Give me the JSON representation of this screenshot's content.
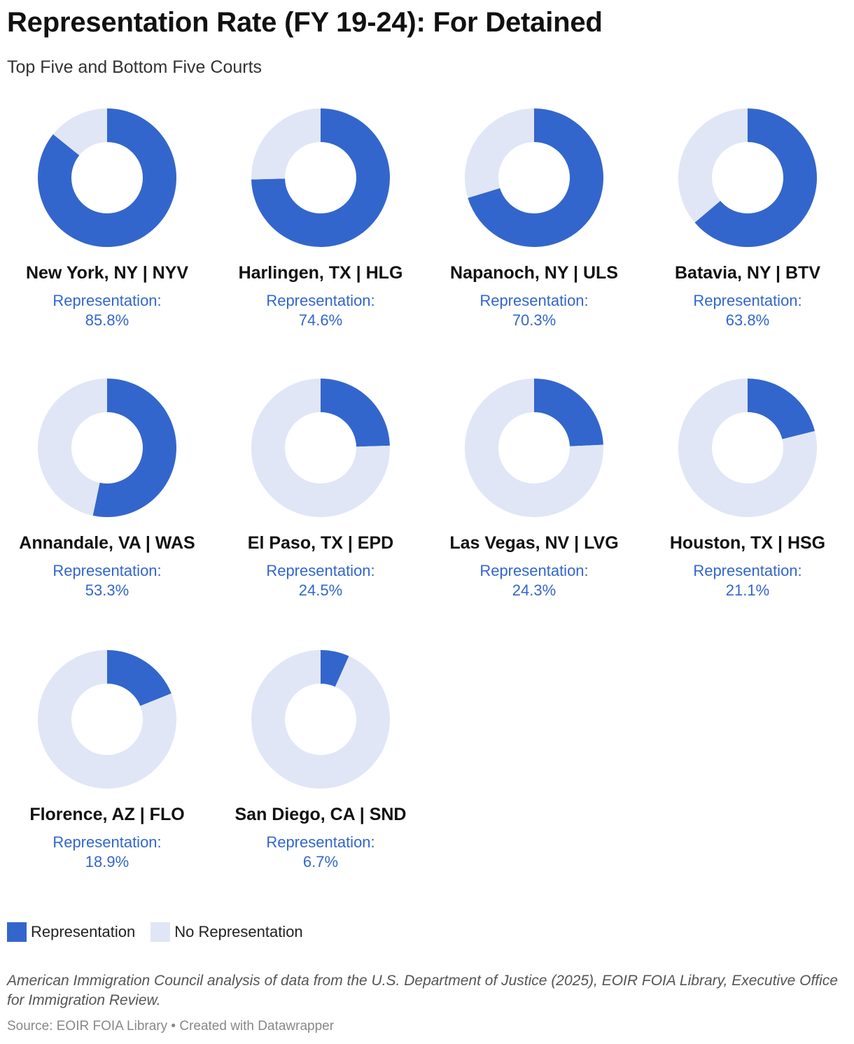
{
  "title": "Representation Rate (FY 19-24): For Detained",
  "subtitle": "Top Five and Bottom Five Courts",
  "colors": {
    "representation": "#3366cc",
    "no_representation": "#e0e6f5"
  },
  "chart_data": {
    "type": "pie",
    "variant": "donut small multiples",
    "value_label": "Representation:",
    "unit": "%",
    "series": [
      {
        "name": "Representation",
        "color": "#3366cc"
      },
      {
        "name": "No Representation",
        "color": "#e0e6f5"
      }
    ],
    "panels": [
      {
        "court": "New York, NY | NYV",
        "representation": 85.8,
        "display": "85.8%"
      },
      {
        "court": "Harlingen, TX | HLG",
        "representation": 74.6,
        "display": "74.6%"
      },
      {
        "court": "Napanoch, NY | ULS",
        "representation": 70.3,
        "display": "70.3%"
      },
      {
        "court": "Batavia, NY | BTV",
        "representation": 63.8,
        "display": "63.8%"
      },
      {
        "court": "Annandale, VA | WAS",
        "representation": 53.3,
        "display": "53.3%"
      },
      {
        "court": "El Paso, TX | EPD",
        "representation": 24.5,
        "display": "24.5%"
      },
      {
        "court": "Las Vegas, NV | LVG",
        "representation": 24.3,
        "display": "24.3%"
      },
      {
        "court": "Houston, TX | HSG",
        "representation": 21.1,
        "display": "21.1%"
      },
      {
        "court": "Florence, AZ | FLO",
        "representation": 18.9,
        "display": "18.9%"
      },
      {
        "court": "San Diego, CA | SND",
        "representation": 6.7,
        "display": "6.7%"
      }
    ]
  },
  "legend": {
    "representation": "Representation",
    "no_representation": "No Representation"
  },
  "footer": {
    "note": "American Immigration Council analysis of data from the U.S. Department of Justice (2025), EOIR FOIA Library, Executive Office for Immigration Review.",
    "source": "Source: EOIR FOIA Library • Created with Datawrapper"
  }
}
